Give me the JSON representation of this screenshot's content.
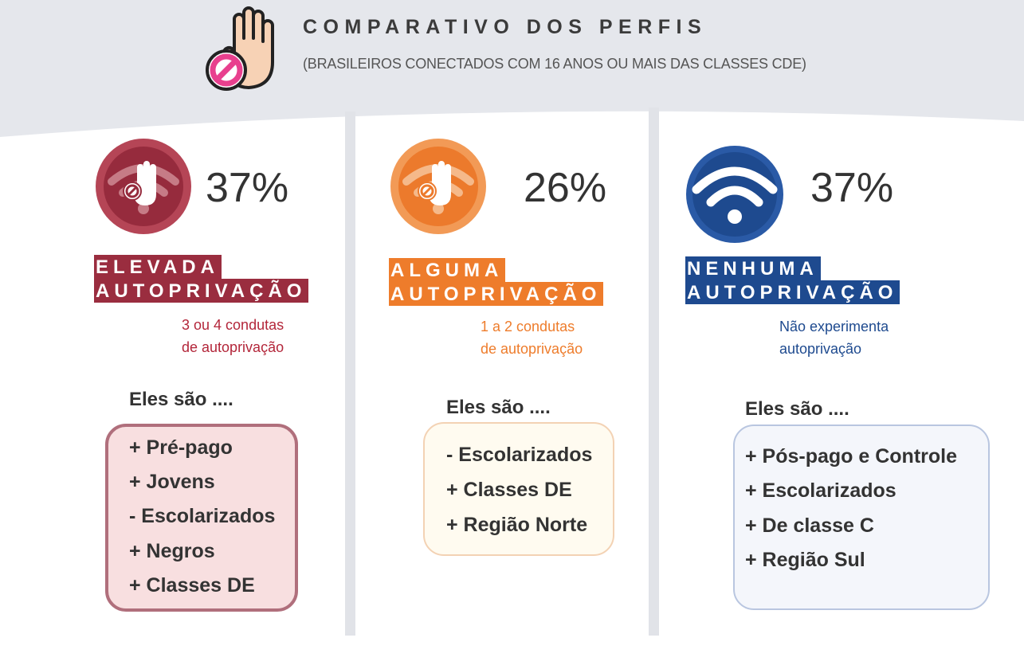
{
  "header": {
    "title": "COMPARATIVO DOS PERFIS",
    "subtitle": "(BRASILEIROS CONECTADOS COM 16 ANOS OU MAIS DAS CLASSES CDE)",
    "icon": "stop-hand-icon"
  },
  "colors": {
    "elevada": "#9a2d3f",
    "alguma": "#ee7c2b",
    "nenhuma": "#1e4a8f",
    "background_header": "#e5e7ec",
    "divider": "#e1e3e8"
  },
  "profiles": [
    {
      "percent": "37%",
      "label_line1": "ELEVADA",
      "label_line2": "AUTOPRIVAÇÃO",
      "desc_line1": "3 ou 4 condutas",
      "desc_line2": "de autoprivação",
      "eles": "Eles são ....",
      "traits": [
        "+ Pré-pago",
        "+ Jovens",
        "-  Escolarizados",
        "+ Negros",
        "+ Classes DE"
      ],
      "icon": "blocked-wifi-hand-icon"
    },
    {
      "percent": "26%",
      "label_line1": "ALGUMA",
      "label_line2": "AUTOPRIVAÇÃO",
      "desc_line1": "1 a 2 condutas",
      "desc_line2": "de autoprivação",
      "eles": "Eles são ....",
      "traits": [
        "- Escolarizados",
        "+ Classes DE",
        "+ Região  Norte"
      ],
      "icon": "blocked-wifi-hand-icon"
    },
    {
      "percent": "37%",
      "label_line1": "NENHUMA",
      "label_line2": "AUTOPRIVAÇÃO",
      "desc_line1": "Não experimenta",
      "desc_line2": "autoprivação",
      "eles": "Eles são ....",
      "traits": [
        "+ Pós-pago e Controle",
        "+ Escolarizados",
        "+ De classe C",
        "+ Região Sul"
      ],
      "icon": "wifi-icon"
    }
  ]
}
